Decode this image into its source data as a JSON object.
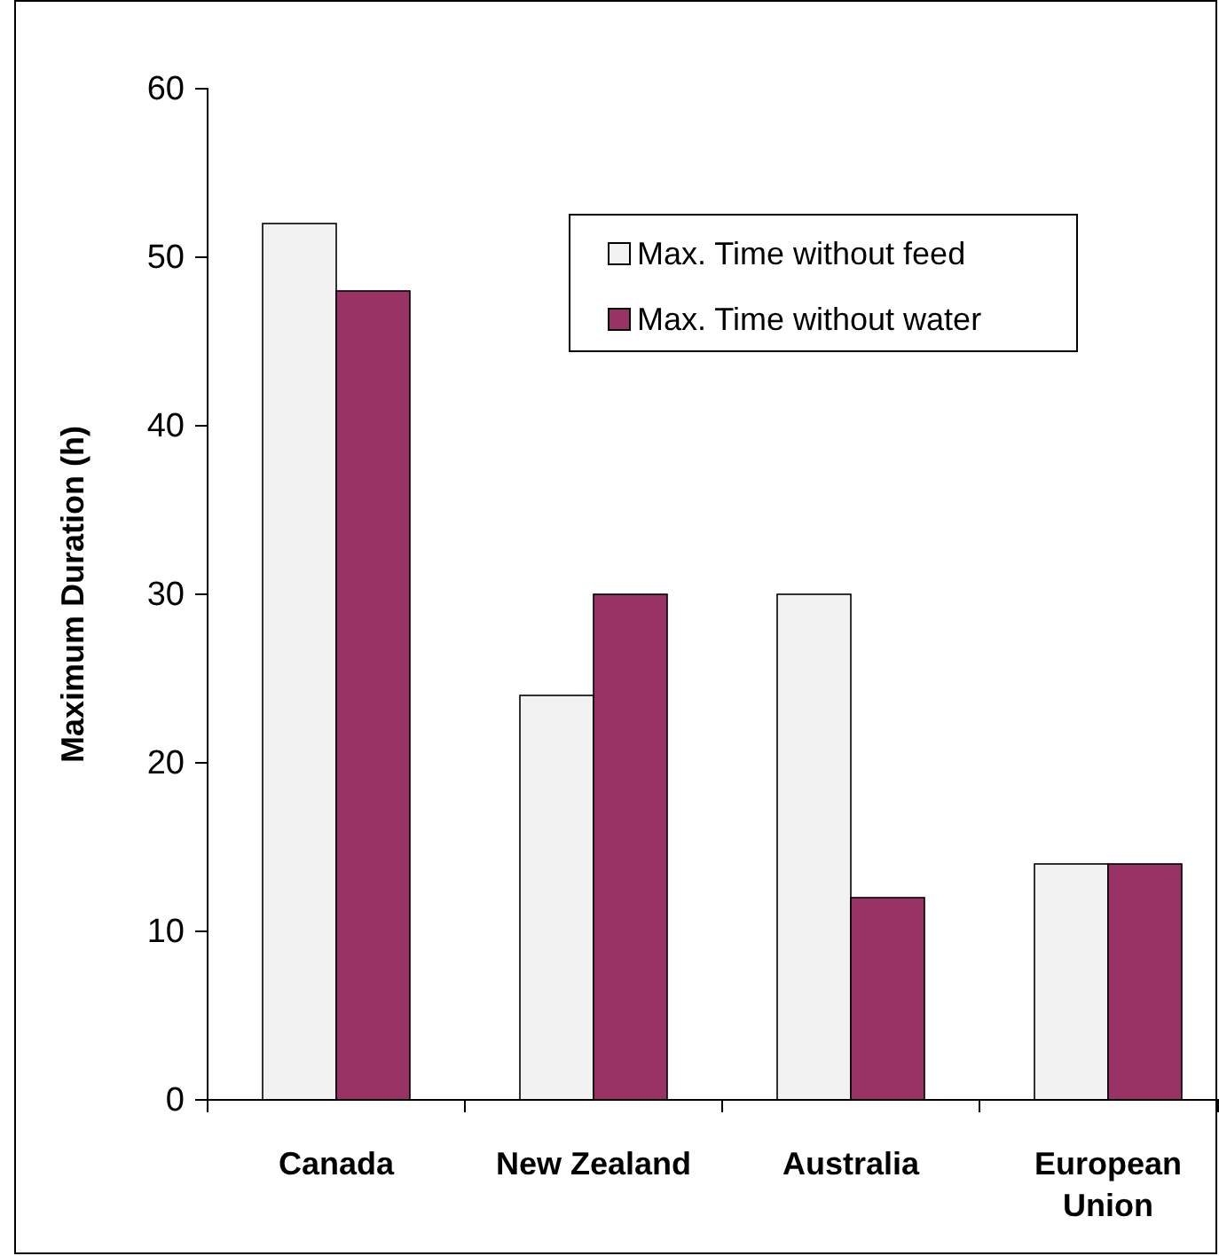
{
  "chart_data": {
    "type": "bar",
    "ylabel": "Maximum Duration (h)",
    "categories": [
      "Canada",
      "New Zealand",
      "Australia",
      "European Union"
    ],
    "series": [
      {
        "name": "Max. Time without feed",
        "color": "#f2f2f2",
        "values": [
          52,
          24,
          30,
          14
        ]
      },
      {
        "name": "Max. Time without water",
        "color": "#993366",
        "values": [
          48,
          30,
          12,
          14
        ]
      }
    ],
    "ylim": [
      0,
      60
    ],
    "yticks": [
      0,
      10,
      20,
      30,
      40,
      50,
      60
    ],
    "legend": "top right"
  }
}
